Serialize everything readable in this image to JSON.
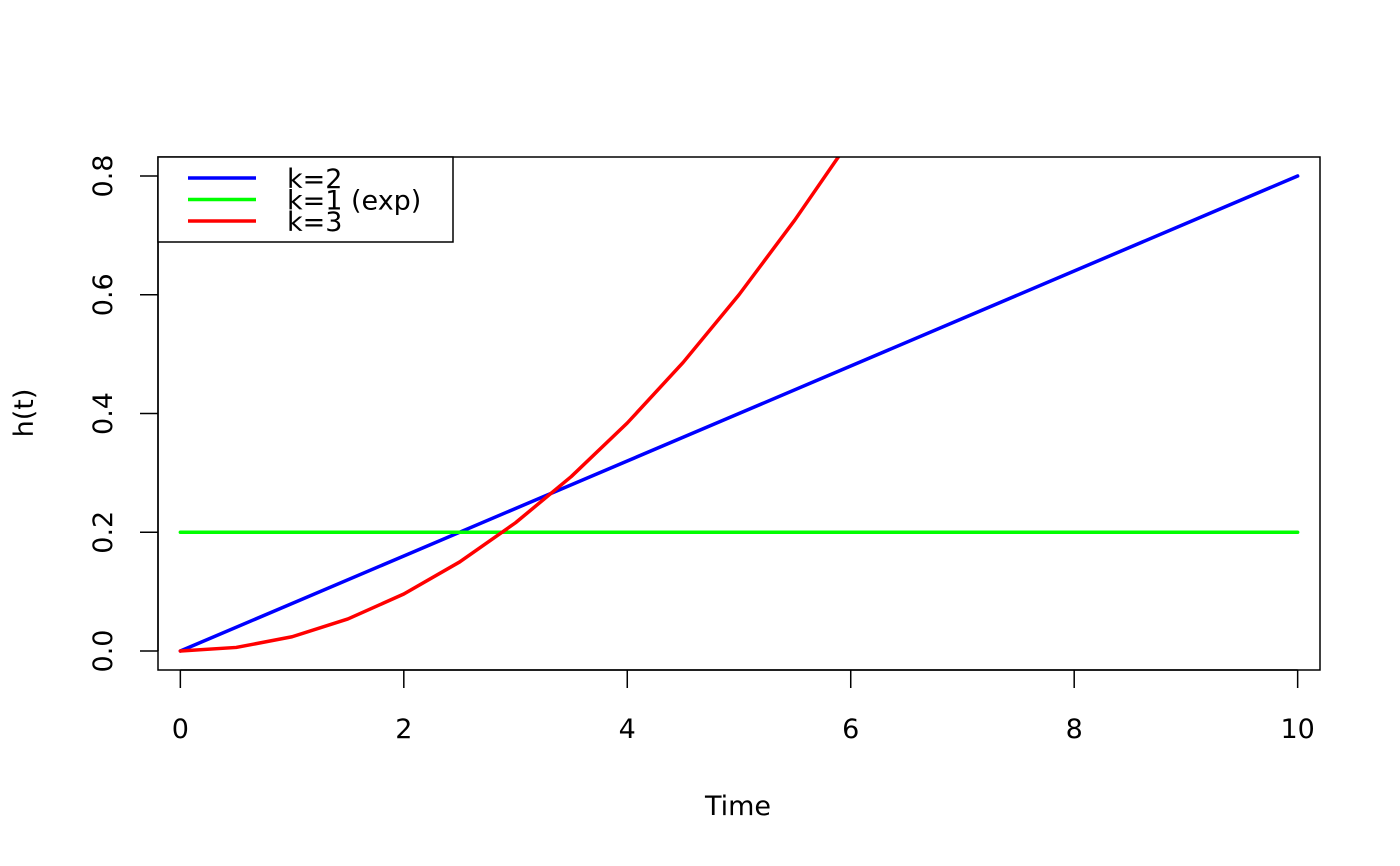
{
  "chart_data": {
    "type": "line",
    "title": "",
    "xlabel": "Time",
    "ylabel": "h(t)",
    "xlim": [
      -0.2,
      10.2
    ],
    "ylim": [
      -0.032,
      0.832
    ],
    "x_ticks": [
      0,
      2,
      4,
      6,
      8,
      10
    ],
    "x_tick_labels": [
      "0",
      "2",
      "4",
      "6",
      "8",
      "10"
    ],
    "y_ticks": [
      0.0,
      0.2,
      0.4,
      0.6,
      0.8
    ],
    "y_tick_labels": [
      "0.0",
      "0.2",
      "0.4",
      "0.6",
      "0.8"
    ],
    "grid": false,
    "legend_position": "top-left",
    "series": [
      {
        "name": "k=2",
        "color": "#0000ff",
        "x": [
          0,
          1,
          2,
          3,
          4,
          5,
          6,
          7,
          8,
          9,
          10
        ],
        "y": [
          0.0,
          0.08,
          0.16,
          0.24,
          0.32,
          0.4,
          0.48,
          0.56,
          0.64,
          0.72,
          0.8
        ]
      },
      {
        "name": "k=1 (exp)",
        "color": "#00ff00",
        "x": [
          0,
          10
        ],
        "y": [
          0.2,
          0.2
        ]
      },
      {
        "name": "k=3",
        "color": "#ff0000",
        "x": [
          0,
          0.5,
          1,
          1.5,
          2,
          2.5,
          3,
          3.5,
          4,
          4.5,
          5,
          5.5,
          5.9
        ],
        "y": [
          0.0,
          0.006,
          0.024,
          0.054,
          0.096,
          0.15,
          0.216,
          0.294,
          0.384,
          0.486,
          0.6,
          0.726,
          0.835
        ]
      }
    ]
  }
}
